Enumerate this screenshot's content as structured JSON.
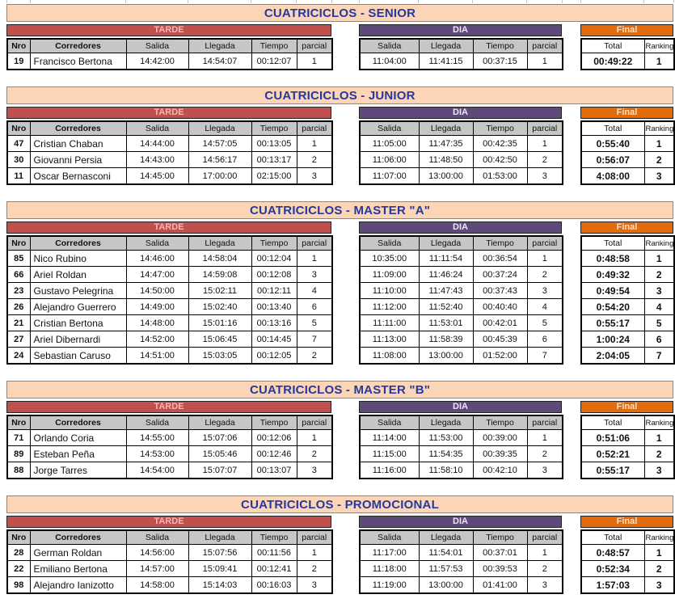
{
  "labels": {
    "tarde": "TARDE",
    "dia": "DIA",
    "final": "Final",
    "nro": "Nro",
    "corredores": "Corredores",
    "salida": "Salida",
    "llegada": "Llegada",
    "tiempo": "Tiempo",
    "parcial": "parcial",
    "total": "Total",
    "ranking": "Ranking"
  },
  "colors": {
    "title_bg": "#FBD5B5",
    "title_text": "#2438A0",
    "tarde_bg": "#C0504D",
    "dia_bg": "#5F497A",
    "final_bg": "#E36C0A",
    "subheader_bg": "#C6C6C6"
  },
  "sections": [
    {
      "title": "CUATRICICLOS - SENIOR",
      "rows": [
        {
          "nro": "19",
          "corredor": "Francisco Bertona",
          "tarde": {
            "salida": "14:42:00",
            "llegada": "14:54:07",
            "tiempo": "00:12:07",
            "parcial": "1"
          },
          "dia": {
            "salida": "11:04:00",
            "llegada": "11:41:15",
            "tiempo": "00:37:15",
            "parcial": "1"
          },
          "final": {
            "total": "00:49:22",
            "ranking": "1"
          }
        }
      ]
    },
    {
      "title": "CUATRICICLOS - JUNIOR",
      "rows": [
        {
          "nro": "47",
          "corredor": "Cristian Chaban",
          "tarde": {
            "salida": "14:44:00",
            "llegada": "14:57:05",
            "tiempo": "00:13:05",
            "parcial": "1"
          },
          "dia": {
            "salida": "11:05:00",
            "llegada": "11:47:35",
            "tiempo": "00:42:35",
            "parcial": "1"
          },
          "final": {
            "total": "0:55:40",
            "ranking": "1"
          }
        },
        {
          "nro": "30",
          "corredor": "Giovanni Persia",
          "tarde": {
            "salida": "14:43:00",
            "llegada": "14:56:17",
            "tiempo": "00:13:17",
            "parcial": "2"
          },
          "dia": {
            "salida": "11:06:00",
            "llegada": "11:48:50",
            "tiempo": "00:42:50",
            "parcial": "2"
          },
          "final": {
            "total": "0:56:07",
            "ranking": "2"
          }
        },
        {
          "nro": "11",
          "corredor": "Oscar Bernasconi",
          "tarde": {
            "salida": "14:45:00",
            "llegada": "17:00:00",
            "tiempo": "02:15:00",
            "parcial": "3"
          },
          "dia": {
            "salida": "11:07:00",
            "llegada": "13:00:00",
            "tiempo": "01:53:00",
            "parcial": "3"
          },
          "final": {
            "total": "4:08:00",
            "ranking": "3"
          }
        }
      ]
    },
    {
      "title": "CUATRICICLOS - MASTER \"A\"",
      "rows": [
        {
          "nro": "85",
          "corredor": "Nico Rubino",
          "tarde": {
            "salida": "14:46:00",
            "llegada": "14:58:04",
            "tiempo": "00:12:04",
            "parcial": "1"
          },
          "dia": {
            "salida": "10:35:00",
            "llegada": "11:11:54",
            "tiempo": "00:36:54",
            "parcial": "1"
          },
          "final": {
            "total": "0:48:58",
            "ranking": "1"
          }
        },
        {
          "nro": "66",
          "corredor": "Ariel Roldan",
          "tarde": {
            "salida": "14:47:00",
            "llegada": "14:59:08",
            "tiempo": "00:12:08",
            "parcial": "3"
          },
          "dia": {
            "salida": "11:09:00",
            "llegada": "11:46:24",
            "tiempo": "00:37:24",
            "parcial": "2"
          },
          "final": {
            "total": "0:49:32",
            "ranking": "2"
          }
        },
        {
          "nro": "23",
          "corredor": "Gustavo Pelegrina",
          "tarde": {
            "salida": "14:50:00",
            "llegada": "15:02:11",
            "tiempo": "00:12:11",
            "parcial": "4"
          },
          "dia": {
            "salida": "11:10:00",
            "llegada": "11:47:43",
            "tiempo": "00:37:43",
            "parcial": "3"
          },
          "final": {
            "total": "0:49:54",
            "ranking": "3"
          }
        },
        {
          "nro": "26",
          "corredor": "Alejandro Guerrero",
          "tarde": {
            "salida": "14:49:00",
            "llegada": "15:02:40",
            "tiempo": "00:13:40",
            "parcial": "6"
          },
          "dia": {
            "salida": "11:12:00",
            "llegada": "11:52:40",
            "tiempo": "00:40:40",
            "parcial": "4"
          },
          "final": {
            "total": "0:54:20",
            "ranking": "4"
          }
        },
        {
          "nro": "21",
          "corredor": "Cristian Bertona",
          "tarde": {
            "salida": "14:48:00",
            "llegada": "15:01:16",
            "tiempo": "00:13:16",
            "parcial": "5"
          },
          "dia": {
            "salida": "11:11:00",
            "llegada": "11:53:01",
            "tiempo": "00:42:01",
            "parcial": "5"
          },
          "final": {
            "total": "0:55:17",
            "ranking": "5"
          }
        },
        {
          "nro": "27",
          "corredor": "Ariel Dibernardi",
          "tarde": {
            "salida": "14:52:00",
            "llegada": "15:06:45",
            "tiempo": "00:14:45",
            "parcial": "7"
          },
          "dia": {
            "salida": "11:13:00",
            "llegada": "11:58:39",
            "tiempo": "00:45:39",
            "parcial": "6"
          },
          "final": {
            "total": "1:00:24",
            "ranking": "6"
          }
        },
        {
          "nro": "24",
          "corredor": "Sebastian Caruso",
          "tarde": {
            "salida": "14:51:00",
            "llegada": "15:03:05",
            "tiempo": "00:12:05",
            "parcial": "2"
          },
          "dia": {
            "salida": "11:08:00",
            "llegada": "13:00:00",
            "tiempo": "01:52:00",
            "parcial": "7"
          },
          "final": {
            "total": "2:04:05",
            "ranking": "7"
          }
        }
      ]
    },
    {
      "title": "CUATRICICLOS - MASTER \"B\"",
      "rows": [
        {
          "nro": "71",
          "corredor": "Orlando Coria",
          "tarde": {
            "salida": "14:55:00",
            "llegada": "15:07:06",
            "tiempo": "00:12:06",
            "parcial": "1"
          },
          "dia": {
            "salida": "11:14:00",
            "llegada": "11:53:00",
            "tiempo": "00:39:00",
            "parcial": "1"
          },
          "final": {
            "total": "0:51:06",
            "ranking": "1"
          }
        },
        {
          "nro": "89",
          "corredor": "Esteban Peña",
          "tarde": {
            "salida": "14:53:00",
            "llegada": "15:05:46",
            "tiempo": "00:12:46",
            "parcial": "2"
          },
          "dia": {
            "salida": "11:15:00",
            "llegada": "11:54:35",
            "tiempo": "00:39:35",
            "parcial": "2"
          },
          "final": {
            "total": "0:52:21",
            "ranking": "2"
          }
        },
        {
          "nro": "88",
          "corredor": "Jorge Tarres",
          "tarde": {
            "salida": "14:54:00",
            "llegada": "15:07:07",
            "tiempo": "00:13:07",
            "parcial": "3"
          },
          "dia": {
            "salida": "11:16:00",
            "llegada": "11:58:10",
            "tiempo": "00:42:10",
            "parcial": "3"
          },
          "final": {
            "total": "0:55:17",
            "ranking": "3"
          }
        }
      ]
    },
    {
      "title": "CUATRICICLOS - PROMOCIONAL",
      "rows": [
        {
          "nro": "28",
          "corredor": "German Roldan",
          "tarde": {
            "salida": "14:56:00",
            "llegada": "15:07:56",
            "tiempo": "00:11:56",
            "parcial": "1"
          },
          "dia": {
            "salida": "11:17:00",
            "llegada": "11:54:01",
            "tiempo": "00:37:01",
            "parcial": "1"
          },
          "final": {
            "total": "0:48:57",
            "ranking": "1"
          }
        },
        {
          "nro": "22",
          "corredor": "Emiliano Bertona",
          "tarde": {
            "salida": "14:57:00",
            "llegada": "15:09:41",
            "tiempo": "00:12:41",
            "parcial": "2"
          },
          "dia": {
            "salida": "11:18:00",
            "llegada": "11:57:53",
            "tiempo": "00:39:53",
            "parcial": "2"
          },
          "final": {
            "total": "0:52:34",
            "ranking": "2"
          }
        },
        {
          "nro": "98",
          "corredor": "Alejandro Ianizotto",
          "tarde": {
            "salida": "14:58:00",
            "llegada": "15:14:03",
            "tiempo": "00:16:03",
            "parcial": "3"
          },
          "dia": {
            "salida": "11:19:00",
            "llegada": "13:00:00",
            "tiempo": "01:41:00",
            "parcial": "3"
          },
          "final": {
            "total": "1:57:03",
            "ranking": "3"
          }
        }
      ]
    }
  ]
}
